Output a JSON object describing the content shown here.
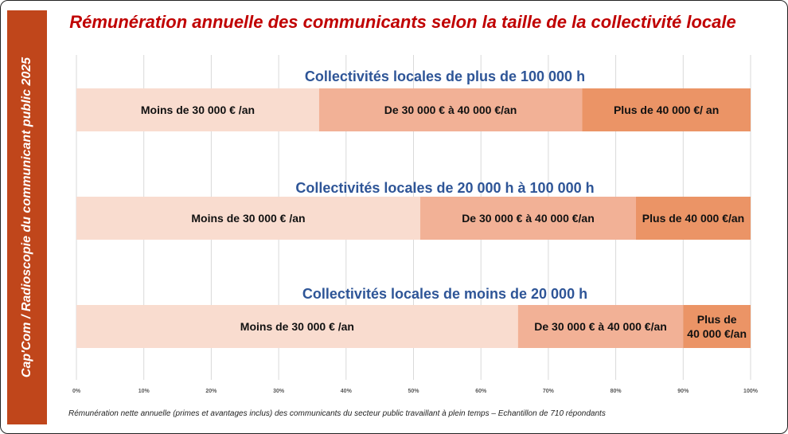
{
  "side_label": "Cap'Com / Radioscopie du communicant public 2025",
  "title": "Rémunération annuelle des communicants selon la taille de la collectivité locale",
  "footnote": "Rémunération nette annuelle (primes et avantages inclus) des communicants du secteur public travaillant à plein temps – Echantillon de 710 répondants",
  "colors": {
    "band": "#c0461b",
    "title": "#c00000",
    "group_title": "#2e5597",
    "grid": "#d9d9d9"
  },
  "chart_data": {
    "type": "bar",
    "stacked": true,
    "orientation": "horizontal",
    "xlim": [
      0,
      100
    ],
    "x_ticks": [
      "0%",
      "10%",
      "20%",
      "30%",
      "40%",
      "50%",
      "60%",
      "70%",
      "80%",
      "90%",
      "100%"
    ],
    "grid": true,
    "groups": [
      {
        "title": "Collectivités locales de plus de 100 000 h",
        "segments": [
          {
            "label": [
              "Moins de  30 000 € /an"
            ],
            "value": 36,
            "color": "#f9dccf"
          },
          {
            "label": [
              "De 30 000 € à 40 000 €/an"
            ],
            "value": 39,
            "color": "#f2b196"
          },
          {
            "label": [
              "Plus de 40 000 €/ an"
            ],
            "value": 25,
            "color": "#eb9466"
          }
        ]
      },
      {
        "title": "Collectivités locales de 20 000 h à 100 000 h",
        "segments": [
          {
            "label": [
              "Moins de 30 000 € /an"
            ],
            "value": 51,
            "color": "#f9dccf"
          },
          {
            "label": [
              "De 30 000 €  à 40 000 €/an"
            ],
            "value": 32,
            "color": "#f2b196"
          },
          {
            "label": [
              "Plus de 40 000 €/an"
            ],
            "value": 17,
            "color": "#eb9466"
          }
        ]
      },
      {
        "title": "Collectivités locales de moins de 20 000 h",
        "segments": [
          {
            "label": [
              "Moins de 30 000 € /an"
            ],
            "value": 65.5,
            "color": "#f9dccf"
          },
          {
            "label": [
              "De 30 000 €  à 40 000 €/an"
            ],
            "value": 24.5,
            "color": "#f2b196"
          },
          {
            "label": [
              "Plus de",
              "40 000 €/an"
            ],
            "value": 10,
            "color": "#eb9466"
          }
        ]
      }
    ]
  }
}
